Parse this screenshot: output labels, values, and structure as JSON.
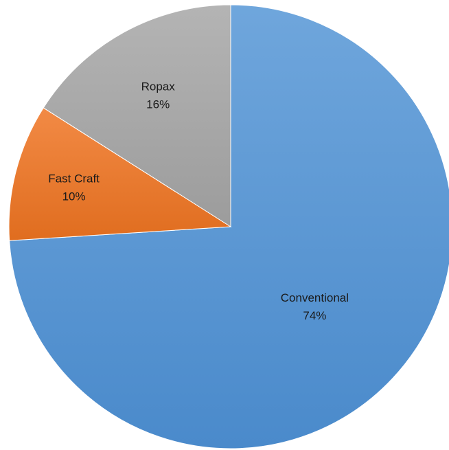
{
  "chart_data": {
    "type": "pie",
    "title": "",
    "start_angle_deg": 0,
    "direction": "clockwise",
    "legend": "none",
    "slices": [
      {
        "label": "Conventional",
        "value": 74,
        "value_label": "74%",
        "color": "#5b9bd5"
      },
      {
        "label": "Fast Craft",
        "value": 10,
        "value_label": "10%",
        "color": "#ed7d31"
      },
      {
        "label": "Ropax",
        "value": 16,
        "value_label": "16%",
        "color": "#a5a5a5"
      }
    ]
  }
}
